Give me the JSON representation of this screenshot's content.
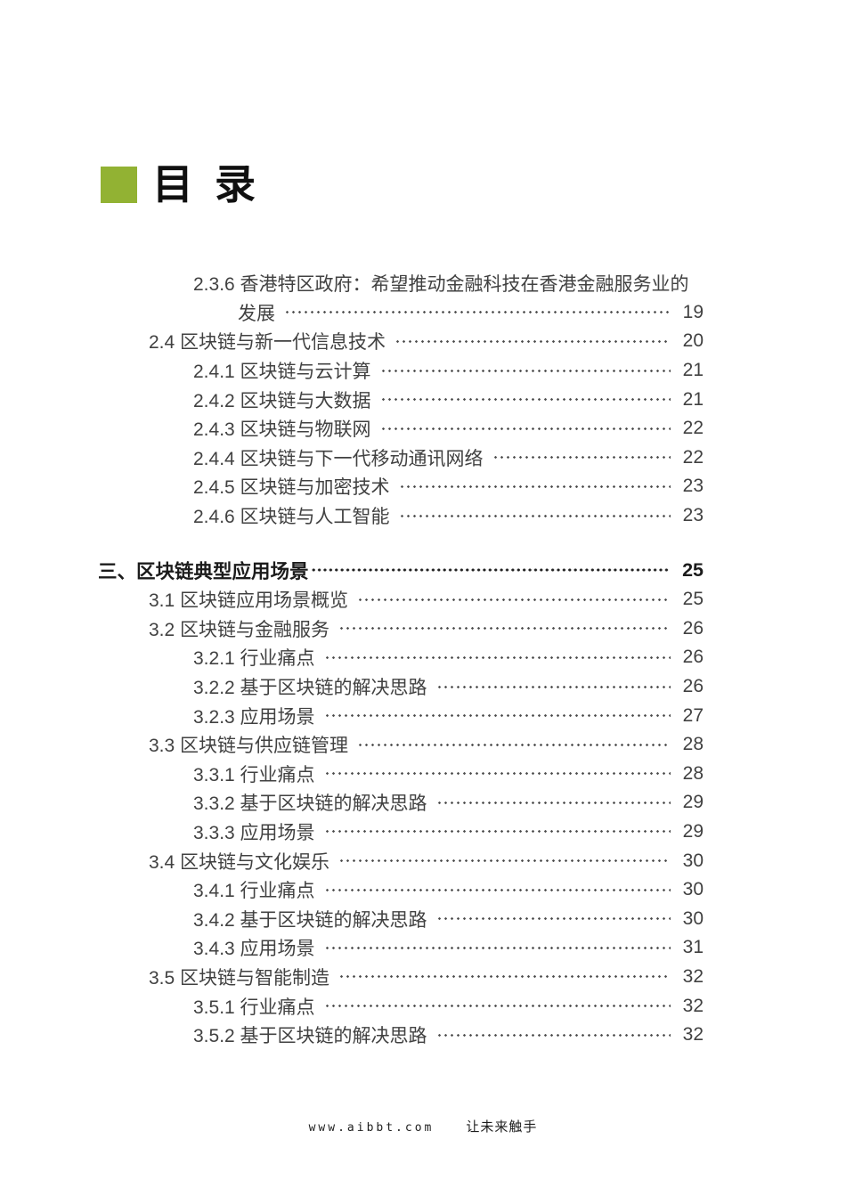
{
  "title": {
    "text": "目 录"
  },
  "accent": {
    "green": "#92b233"
  },
  "toc": {
    "entries": [
      {
        "level": 3,
        "text": "2.3.6 香港特区政府：希望推动金融科技在香港金融服务业的",
        "page": ""
      },
      {
        "level": 4,
        "text": "发展",
        "page": "19"
      },
      {
        "level": 2,
        "text": "2.4 区块链与新一代信息技术",
        "page": "20"
      },
      {
        "level": 3,
        "text": "2.4.1 区块链与云计算",
        "page": "21"
      },
      {
        "level": 3,
        "text": "2.4.2 区块链与大数据",
        "page": "21"
      },
      {
        "level": 3,
        "text": "2.4.3 区块链与物联网",
        "page": "22"
      },
      {
        "level": 3,
        "text": "2.4.4 区块链与下一代移动通讯网络",
        "page": "22"
      },
      {
        "level": 3,
        "text": "2.4.5 区块链与加密技术",
        "page": "23"
      },
      {
        "level": 3,
        "text": "2.4.6 区块链与人工智能",
        "page": "23"
      },
      {
        "level": 1,
        "text": "三、区块链典型应用场景",
        "page": "25",
        "bold": true,
        "gapBefore": true
      },
      {
        "level": 2,
        "text": "3.1 区块链应用场景概览",
        "page": "25"
      },
      {
        "level": 2,
        "text": "3.2 区块链与金融服务",
        "page": "26"
      },
      {
        "level": 3,
        "text": "3.2.1 行业痛点",
        "page": "26"
      },
      {
        "level": 3,
        "text": "3.2.2 基于区块链的解决思路",
        "page": "26"
      },
      {
        "level": 3,
        "text": "3.2.3 应用场景",
        "page": "27"
      },
      {
        "level": 2,
        "text": "3.3 区块链与供应链管理",
        "page": "28"
      },
      {
        "level": 3,
        "text": "3.3.1 行业痛点",
        "page": "28"
      },
      {
        "level": 3,
        "text": "3.3.2 基于区块链的解决思路",
        "page": "29"
      },
      {
        "level": 3,
        "text": "3.3.3 应用场景",
        "page": "29"
      },
      {
        "level": 2,
        "text": "3.4 区块链与文化娱乐",
        "page": "30"
      },
      {
        "level": 3,
        "text": "3.4.1 行业痛点",
        "page": "30"
      },
      {
        "level": 3,
        "text": "3.4.2 基于区块链的解决思路",
        "page": "30"
      },
      {
        "level": 3,
        "text": "3.4.3 应用场景",
        "page": "31"
      },
      {
        "level": 2,
        "text": "3.5 区块链与智能制造",
        "page": "32"
      },
      {
        "level": 3,
        "text": "3.5.1 行业痛点",
        "page": "32"
      },
      {
        "level": 3,
        "text": "3.5.2 基于区块链的解决思路",
        "page": "32"
      }
    ]
  },
  "footer": {
    "url": "www.aibbt.com",
    "slogan": "让未来触手"
  }
}
